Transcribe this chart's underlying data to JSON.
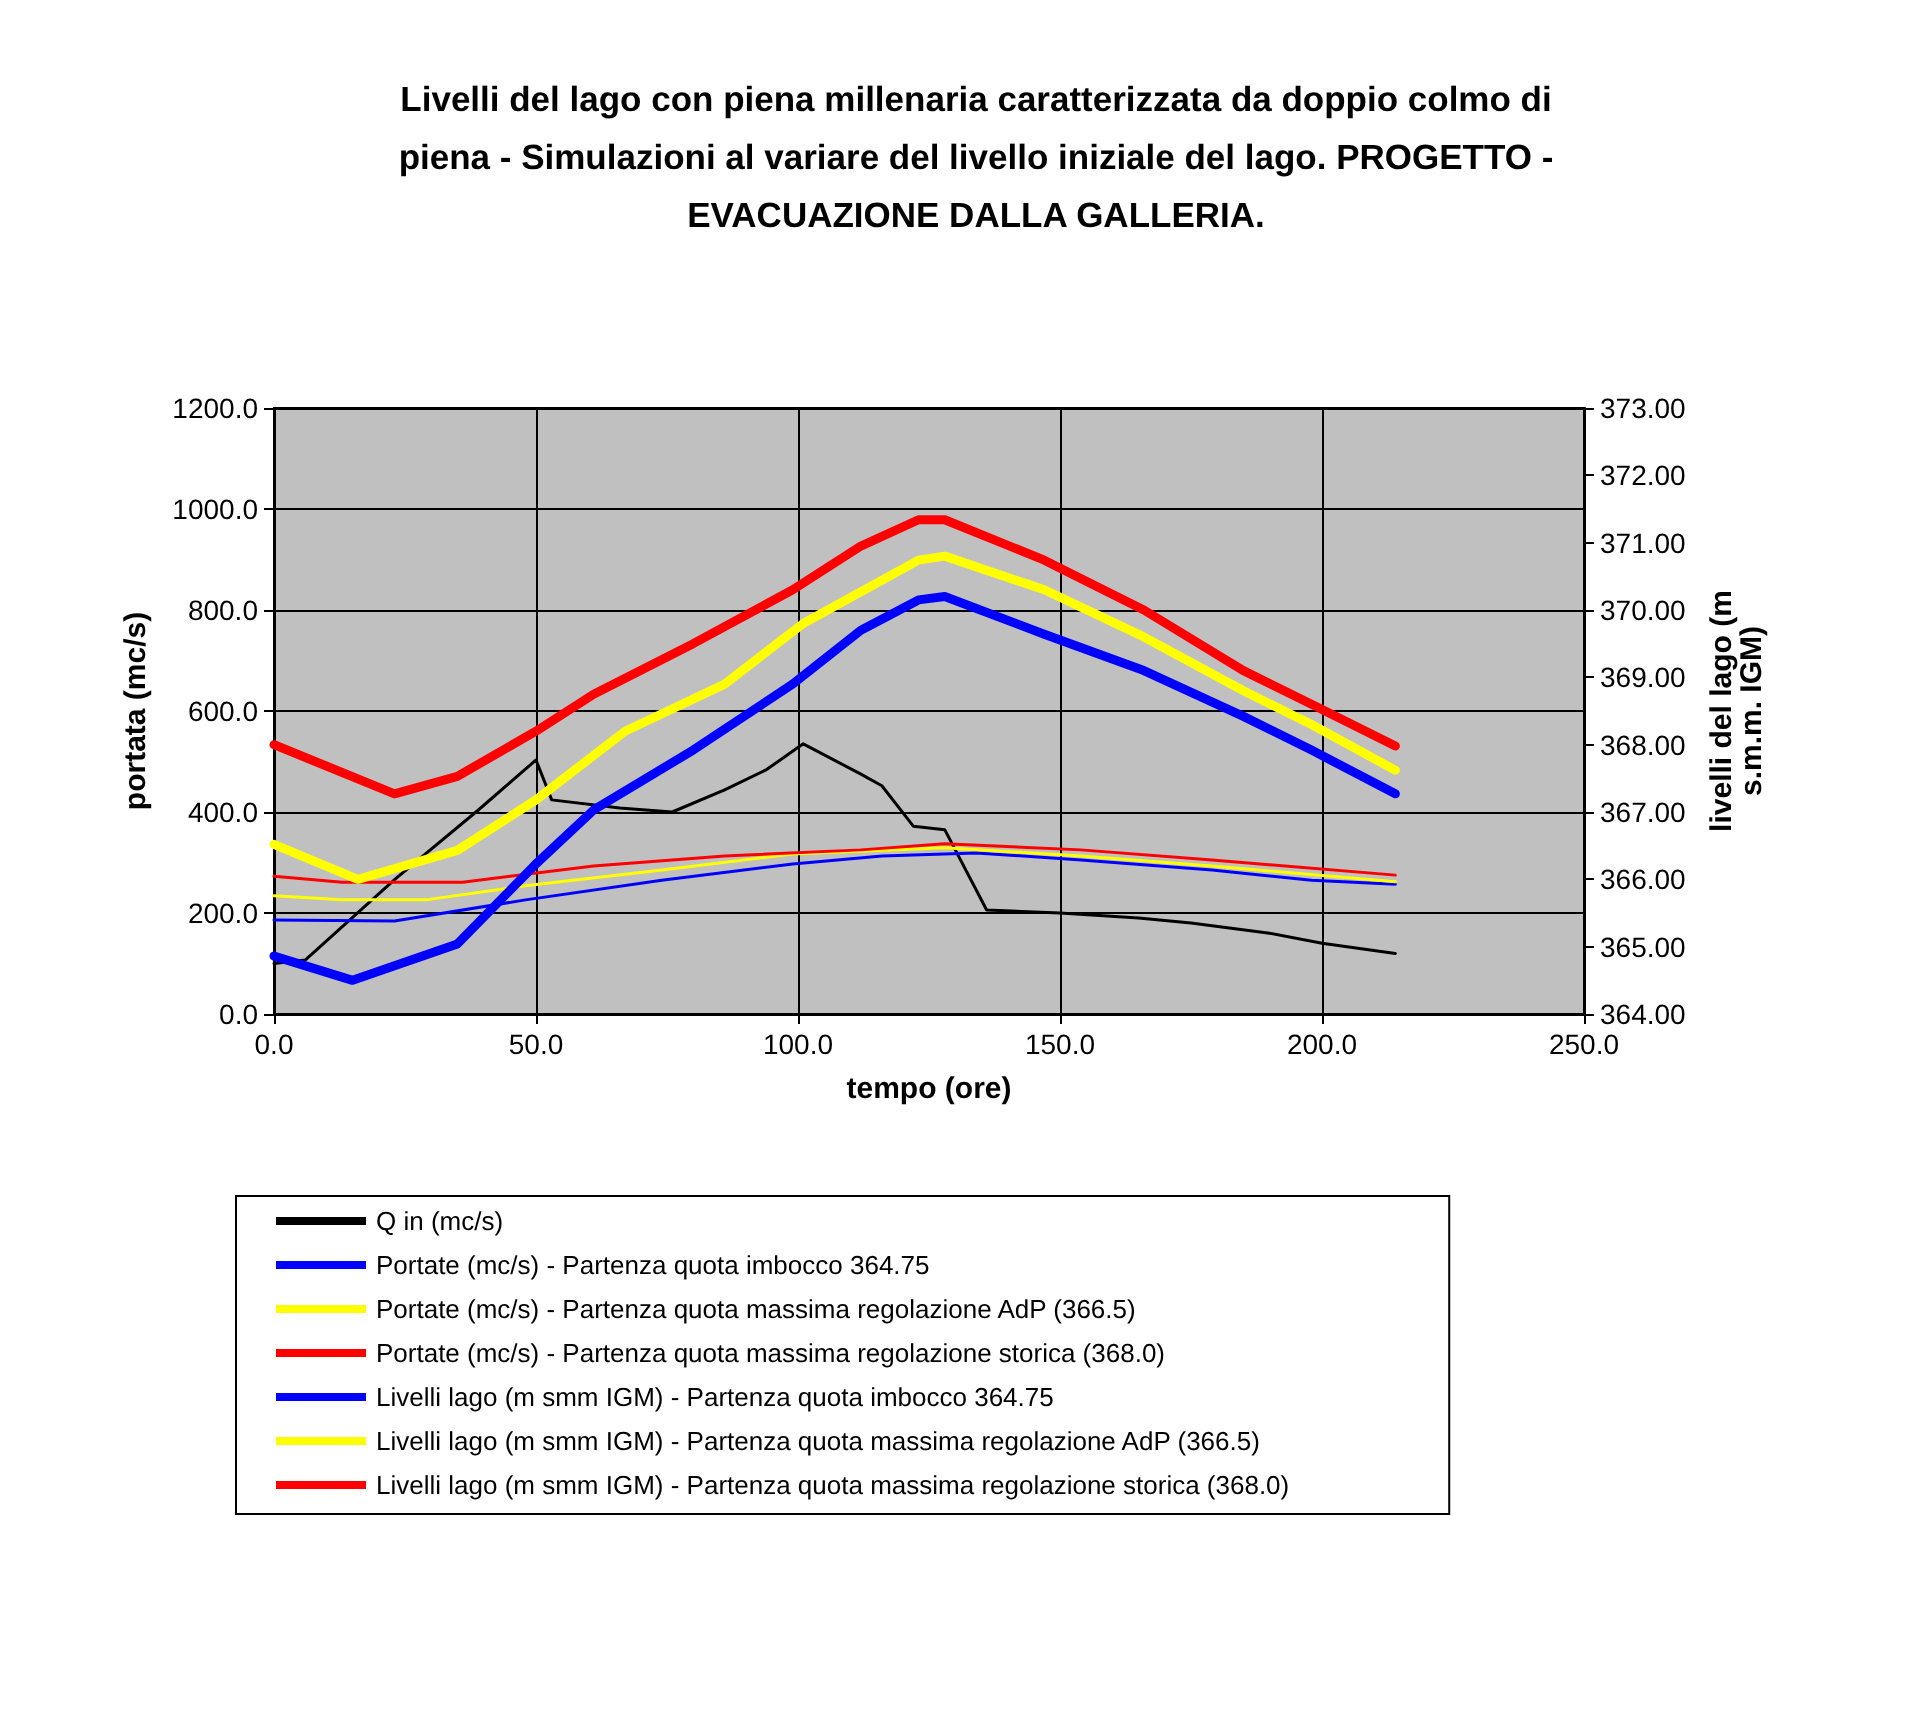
{
  "chart_data": {
    "type": "line",
    "title": "Livelli del lago con piena millenaria caratterizzata da doppio colmo di\npiena - Simulazioni al variare del livello iniziale del lago. PROGETTO -\nEVACUAZIONE DALLA GALLERIA.",
    "xlabel": "tempo (ore)",
    "ylabel": "portata (mc/s)",
    "y2label": "livelli del lago (m\ns.m.m. IGM)",
    "xlim": [
      0,
      250
    ],
    "xticks": [
      {
        "value": 0,
        "label": "0.0"
      },
      {
        "value": 50,
        "label": "50.0"
      },
      {
        "value": 100,
        "label": "100.0"
      },
      {
        "value": 150,
        "label": "150.0"
      },
      {
        "value": 200,
        "label": "200.0"
      },
      {
        "value": 250,
        "label": "250.0"
      }
    ],
    "ylim": [
      0,
      1200
    ],
    "yticks": [
      {
        "value": 0,
        "label": "0.0"
      },
      {
        "value": 200,
        "label": "200.0"
      },
      {
        "value": 400,
        "label": "400.0"
      },
      {
        "value": 600,
        "label": "600.0"
      },
      {
        "value": 800,
        "label": "800.0"
      },
      {
        "value": 1000,
        "label": "1000.0"
      },
      {
        "value": 1200,
        "label": "1200.0"
      }
    ],
    "y2lim": [
      364,
      373
    ],
    "y2ticks": [
      {
        "value": 364,
        "label": "364.00"
      },
      {
        "value": 365,
        "label": "365.00"
      },
      {
        "value": 366,
        "label": "366.00"
      },
      {
        "value": 367,
        "label": "367.00"
      },
      {
        "value": 368,
        "label": "368.00"
      },
      {
        "value": 369,
        "label": "369.00"
      },
      {
        "value": 370,
        "label": "370.00"
      },
      {
        "value": 371,
        "label": "371.00"
      },
      {
        "value": 372,
        "label": "372.00"
      },
      {
        "value": 373,
        "label": "373.00"
      }
    ],
    "grid": true,
    "legend": "bottom",
    "marker": "none",
    "line_style": "solid",
    "series": [
      {
        "name": "Q in (mc/s)",
        "color": "#000000",
        "x": [
          0,
          6,
          23,
          39,
          50,
          53,
          66,
          76,
          86,
          94,
          101,
          112,
          116,
          122,
          128,
          136,
          150,
          165,
          175,
          190,
          200,
          214
        ],
        "values": [
          100,
          107,
          266,
          404,
          503,
          424,
          408,
          400,
          444,
          484,
          535,
          475,
          452,
          372,
          365,
          206,
          200,
          190,
          180,
          160,
          140,
          120
        ]
      },
      {
        "name": "Portate (mc/s) - Partenza quota imbocco 364.75",
        "color": "#0000ff",
        "x": [
          0,
          23,
          48,
          74,
          99,
          116,
          134,
          154,
          179,
          198,
          214
        ],
        "values": [
          186,
          184,
          226,
          265,
          297,
          313,
          319,
          305,
          285,
          265,
          257
        ]
      },
      {
        "name": "Portate (mc/s) - Partenza quota massima regolazione AdP (366.5)",
        "color": "#ffff00",
        "x": [
          0,
          13,
          29,
          48,
          74,
          99,
          128,
          154,
          179,
          214
        ],
        "values": [
          234,
          226,
          226,
          254,
          285,
          317,
          329,
          313,
          293,
          262
        ]
      },
      {
        "name": "Portate (mc/s) - Partenza quota massima regolazione storica (368.0)",
        "color": "#ff0000",
        "x": [
          0,
          13,
          36,
          61,
          86,
          112,
          128,
          154,
          179,
          214
        ],
        "values": [
          273,
          261,
          261,
          293,
          313,
          325,
          337,
          325,
          305,
          275
        ]
      },
      {
        "name": "Livelli lago (m smm IGM) - Partenza quota imbocco 364.75",
        "color": "#0000ff",
        "axis": "y2",
        "x": [
          0,
          15,
          35,
          50,
          61,
          80,
          99,
          112,
          123,
          128,
          147,
          166,
          185,
          198,
          214
        ],
        "values": [
          364.86,
          364.5,
          365.04,
          366.23,
          367.03,
          367.92,
          368.9,
          369.7,
          370.15,
          370.2,
          369.64,
          369.1,
          368.42,
          367.92,
          367.27
        ]
      },
      {
        "name": "Livelli lago (m smm IGM) - Partenza quota massima regolazione AdP (366.5)",
        "color": "#ffff00",
        "axis": "y2",
        "x": [
          0,
          16,
          35,
          50,
          67,
          86,
          101,
          123,
          128,
          147,
          166,
          185,
          198,
          214
        ],
        "values": [
          366.52,
          366.0,
          366.43,
          367.18,
          368.2,
          368.9,
          369.8,
          370.74,
          370.8,
          370.3,
          369.6,
          368.8,
          368.3,
          367.62
        ]
      },
      {
        "name": "Livelli lago (m smm IGM) - Partenza quota massima regolazione storica (368.0)",
        "color": "#ff0000",
        "axis": "y2",
        "x": [
          0,
          23,
          35,
          50,
          61,
          80,
          99,
          112,
          123,
          128,
          147,
          166,
          185,
          198,
          214
        ],
        "values": [
          368.0,
          367.27,
          367.53,
          368.2,
          368.75,
          369.5,
          370.3,
          370.95,
          371.34,
          371.34,
          370.74,
          370.0,
          369.1,
          368.6,
          367.98
        ]
      }
    ]
  }
}
